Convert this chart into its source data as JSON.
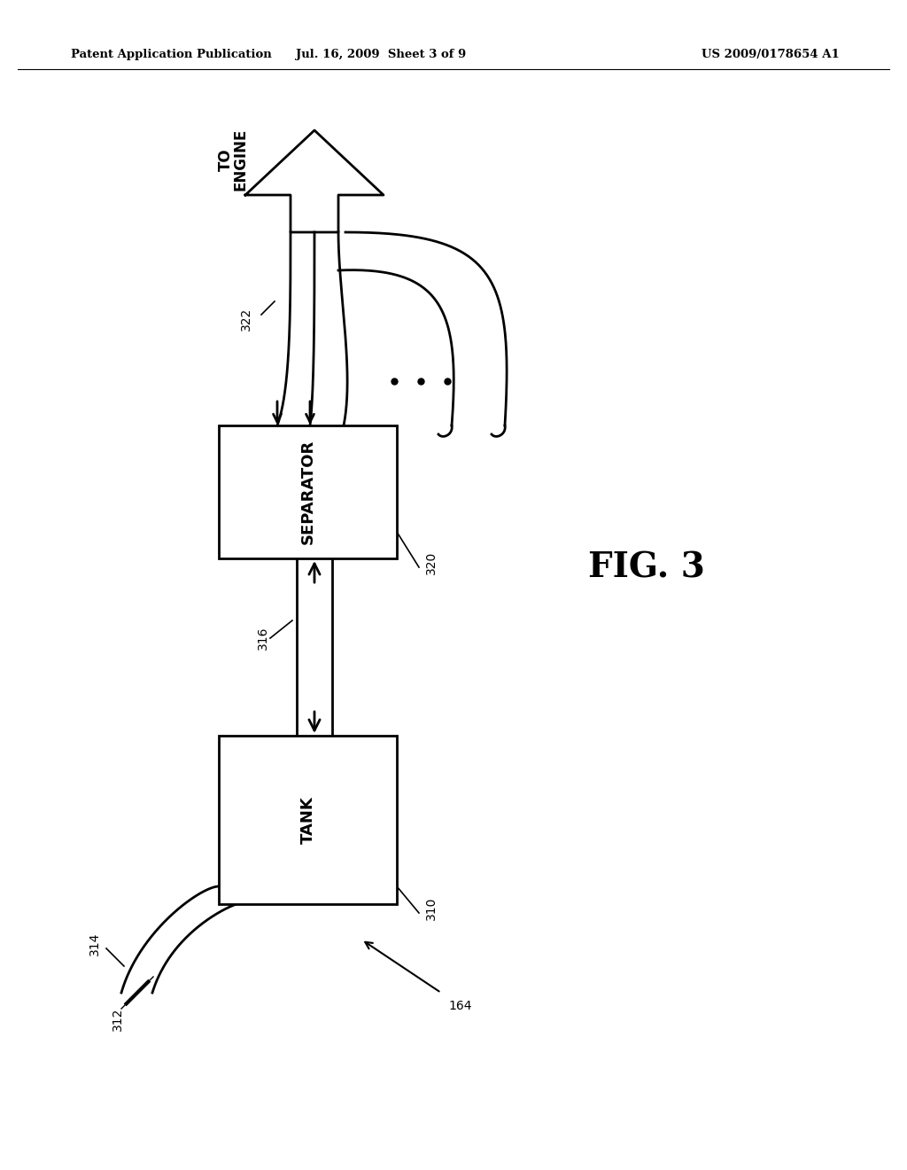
{
  "bg_color": "#ffffff",
  "header_left": "Patent Application Publication",
  "header_mid": "Jul. 16, 2009  Sheet 3 of 9",
  "header_right": "US 2009/0178654 A1",
  "fig_label": "FIG. 3",
  "label_322": "322",
  "label_320": "320",
  "label_316": "316",
  "label_310": "310",
  "label_314": "314",
  "label_312": "312",
  "label_164": "164",
  "separator_text": "SEPARATOR",
  "tank_text": "TANK",
  "to_engine_line1": "TO",
  "to_engine_line2": "ENGINE",
  "line_color": "#000000",
  "line_width": 2.0
}
